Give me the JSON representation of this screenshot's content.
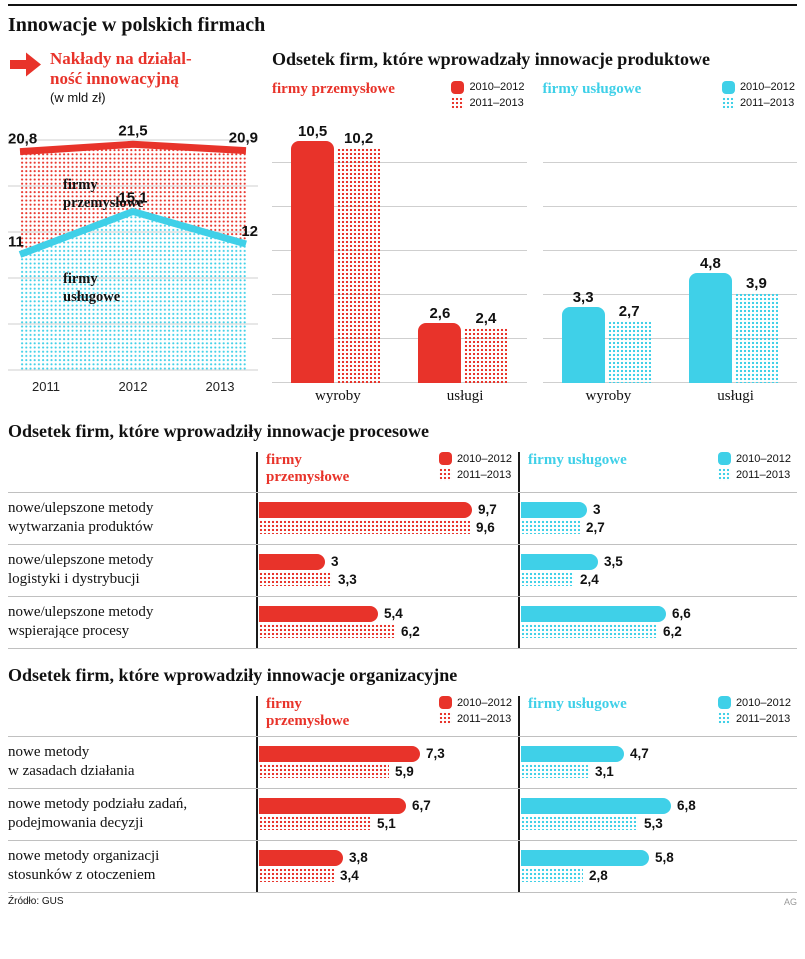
{
  "page": {
    "title": "Innowacje w polskich firmach",
    "source": "Źródło: GUS",
    "credit": "AG"
  },
  "colors": {
    "red": "#e8332a",
    "cyan": "#3fd0e8",
    "grid": "#cfcfcf",
    "divider": "#1a1a1a"
  },
  "legend": {
    "period1": "2010–2012",
    "period2": "2011–2013"
  },
  "chart_data": [
    {
      "id": "naklady",
      "type": "line",
      "title": "Nakłady na działal-\nność innowacyjną",
      "subtitle": "(w mld zł)",
      "x": [
        "2011",
        "2012",
        "2013"
      ],
      "series": [
        {
          "name": "firmy\nprzemysłowe",
          "color": "red",
          "values": [
            20.8,
            21.5,
            20.9
          ]
        },
        {
          "name": "firmy\nusługowe",
          "color": "cyan",
          "values": [
            11,
            15.1,
            12
          ]
        }
      ],
      "ylim": [
        0,
        22
      ],
      "grid": true,
      "area_fill": "dotted"
    },
    {
      "id": "produktowe",
      "type": "bar",
      "title": "Odsetek firm, które wprowadzały innowacje produktowe",
      "categories": [
        "wyroby",
        "usługi"
      ],
      "panels": [
        {
          "name": "firmy przemysłowe",
          "color": "red",
          "series": [
            {
              "name": "2010–2012",
              "style": "solid",
              "values": [
                10.5,
                2.6
              ]
            },
            {
              "name": "2011–2013",
              "style": "dotted",
              "values": [
                10.2,
                2.4
              ]
            }
          ]
        },
        {
          "name": "firmy usługowe",
          "color": "cyan",
          "series": [
            {
              "name": "2010–2012",
              "style": "solid",
              "values": [
                3.3,
                4.8
              ]
            },
            {
              "name": "2011–2013",
              "style": "dotted",
              "values": [
                2.7,
                3.9
              ]
            }
          ]
        }
      ],
      "ylim": [
        0,
        11.5
      ],
      "grid": true
    },
    {
      "id": "procesowe",
      "type": "bar",
      "orientation": "horizontal",
      "title": "Odsetek firm, które wprowadziły innowacje procesowe",
      "categories": [
        "nowe/ulepszone metody\nwytwarzania produktów",
        "nowe/ulepszone metody\nlogistyki i dystrybucji",
        "nowe/ulepszone metody\nwspierające procesy"
      ],
      "panels": [
        {
          "name": "firmy przemysłowe",
          "color": "red",
          "series": [
            {
              "name": "2010–2012",
              "style": "solid",
              "values": [
                9.7,
                3,
                5.4
              ]
            },
            {
              "name": "2011–2013",
              "style": "dotted",
              "values": [
                9.6,
                3.3,
                6.2
              ]
            }
          ]
        },
        {
          "name": "firmy usługowe",
          "color": "cyan",
          "series": [
            {
              "name": "2010–2012",
              "style": "solid",
              "values": [
                3,
                3.5,
                6.6
              ]
            },
            {
              "name": "2011–2013",
              "style": "dotted",
              "values": [
                2.7,
                2.4,
                6.2
              ]
            }
          ]
        }
      ],
      "xlim": [
        0,
        10
      ]
    },
    {
      "id": "organizacyjne",
      "type": "bar",
      "orientation": "horizontal",
      "title": "Odsetek firm, które wprowadziły innowacje organizacyjne",
      "categories": [
        "nowe metody\nw zasadach działania",
        "nowe metody podziału zadań,\npodejmowania decyzji",
        "nowe metody organizacji\nstosunków z otoczeniem"
      ],
      "panels": [
        {
          "name": "firmy przemysłowe",
          "color": "red",
          "series": [
            {
              "name": "2010–2012",
              "style": "solid",
              "values": [
                7.3,
                6.7,
                3.8
              ]
            },
            {
              "name": "2011–2013",
              "style": "dotted",
              "values": [
                5.9,
                5.1,
                3.4
              ]
            }
          ]
        },
        {
          "name": "firmy usługowe",
          "color": "cyan",
          "series": [
            {
              "name": "2010–2012",
              "style": "solid",
              "values": [
                4.7,
                6.8,
                5.8
              ]
            },
            {
              "name": "2011–2013",
              "style": "dotted",
              "values": [
                3.1,
                5.3,
                2.8
              ]
            }
          ]
        }
      ],
      "xlim": [
        0,
        10
      ]
    }
  ]
}
